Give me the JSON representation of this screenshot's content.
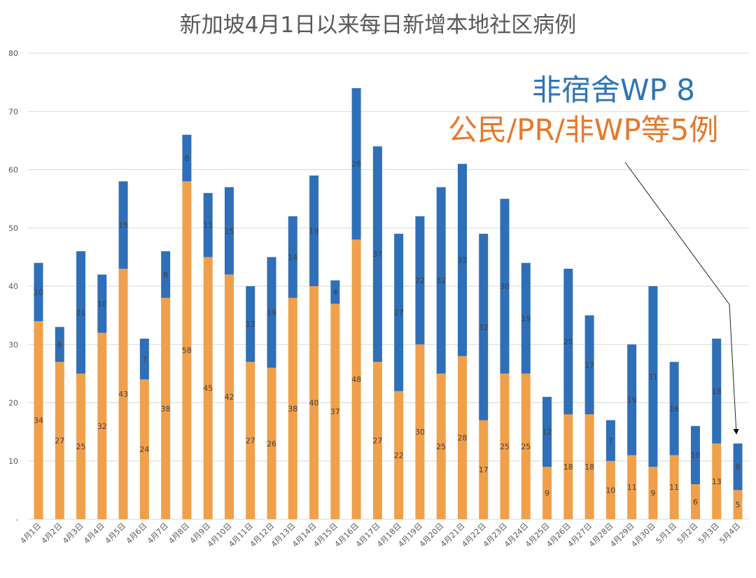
{
  "chart_data": {
    "type": "bar",
    "stacked": true,
    "title": "新加坡4月1日以来每日新增本地社区病例",
    "categories": [
      "4月1日",
      "4月2日",
      "4月3日",
      "4月4日",
      "4月5日",
      "4月6日",
      "4月7日",
      "4月8日",
      "4月9日",
      "4月10日",
      "4月11日",
      "4月12日",
      "4月13日",
      "4月14日",
      "4月15日",
      "4月16日",
      "4月17日",
      "4月18日",
      "4月19日",
      "4月20日",
      "4月21日",
      "4月22日",
      "4月23日",
      "4月24日",
      "4月25日",
      "4月26日",
      "4月27日",
      "4月28日",
      "4月29日",
      "4月30日",
      "5月1日",
      "5月2日",
      "5月3日",
      "5月4日"
    ],
    "series": [
      {
        "color": "#f0a04b",
        "values": [
          34,
          27,
          25,
          32,
          43,
          24,
          38,
          58,
          45,
          42,
          27,
          26,
          38,
          40,
          37,
          48,
          27,
          22,
          30,
          25,
          28,
          17,
          25,
          25,
          9,
          18,
          18,
          10,
          11,
          9,
          11,
          6,
          13,
          5
        ]
      },
      {
        "color": "#2e6fb8",
        "values": [
          10,
          6,
          21,
          10,
          15,
          7,
          8,
          8,
          11,
          15,
          13,
          19,
          14,
          19,
          4,
          26,
          37,
          27,
          22,
          32,
          33,
          32,
          30,
          19,
          12,
          25,
          17,
          7,
          19,
          31,
          16,
          10,
          18,
          8
        ]
      }
    ],
    "ylim": [
      0,
      80
    ],
    "yticks": [
      "-",
      "10",
      "20",
      "30",
      "40",
      "50",
      "60",
      "70",
      "80"
    ],
    "grid": true,
    "annotations": [
      {
        "text": "非宿舍WP 8",
        "color": "#2e75b6"
      },
      {
        "text": "公民/PR/非WP等5例",
        "color": "#e8782a"
      }
    ]
  }
}
